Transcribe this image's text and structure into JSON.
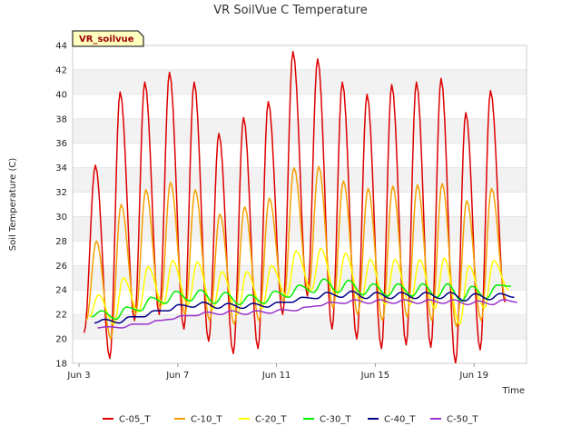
{
  "chart_data": {
    "type": "line",
    "title": "VR SoilVue C Temperature",
    "xlabel": "Time",
    "ylabel": "Soil Temperature (C)",
    "station_label": "VR_soilvue",
    "ylim": [
      18,
      44
    ],
    "yticks": [
      18,
      20,
      22,
      24,
      26,
      28,
      30,
      32,
      34,
      36,
      38,
      40,
      42,
      44
    ],
    "xlim": [
      "2024-06-03",
      "2024-06-21"
    ],
    "xticks": [
      {
        "date": "2024-06-03",
        "label": "Jun 3"
      },
      {
        "date": "2024-06-07",
        "label": "Jun 7"
      },
      {
        "date": "2024-06-11",
        "label": "Jun 11"
      },
      {
        "date": "2024-06-15",
        "label": "Jun 15"
      },
      {
        "date": "2024-06-19",
        "label": "Jun 19"
      }
    ],
    "grid": true,
    "legend_position": "bottom",
    "series": [
      {
        "name": "C-05_T",
        "color": "#dd0000",
        "daily": [
          {
            "peak_date": "2024-06-03 16:00",
            "max": 34.2,
            "min_date": "2024-06-03 05:00",
            "min": 20.5
          },
          {
            "peak_date": "2024-06-04 16:00",
            "max": 40.2,
            "min_date": "2024-06-04 06:00",
            "min": 18.4
          },
          {
            "peak_date": "2024-06-05 16:00",
            "max": 41.0,
            "min_date": "2024-06-05 06:00",
            "min": 21.5
          },
          {
            "peak_date": "2024-06-06 16:00",
            "max": 41.8,
            "min_date": "2024-06-06 06:00",
            "min": 22.0
          },
          {
            "peak_date": "2024-06-07 16:00",
            "max": 41.0,
            "min_date": "2024-06-07 06:00",
            "min": 20.8
          },
          {
            "peak_date": "2024-06-08 16:00",
            "max": 36.8,
            "min_date": "2024-06-08 06:00",
            "min": 19.8
          },
          {
            "peak_date": "2024-06-09 16:00",
            "max": 38.1,
            "min_date": "2024-06-09 06:00",
            "min": 18.8
          },
          {
            "peak_date": "2024-06-10 16:00",
            "max": 39.4,
            "min_date": "2024-06-10 06:00",
            "min": 19.2
          },
          {
            "peak_date": "2024-06-11 16:00",
            "max": 43.5,
            "min_date": "2024-06-11 06:00",
            "min": 22.0
          },
          {
            "peak_date": "2024-06-12 16:00",
            "max": 42.9,
            "min_date": "2024-06-12 06:00",
            "min": 23.5
          },
          {
            "peak_date": "2024-06-13 16:00",
            "max": 41.0,
            "min_date": "2024-06-13 06:00",
            "min": 20.8
          },
          {
            "peak_date": "2024-06-14 16:00",
            "max": 40.0,
            "min_date": "2024-06-14 06:00",
            "min": 20.0
          },
          {
            "peak_date": "2024-06-15 16:00",
            "max": 40.8,
            "min_date": "2024-06-15 06:00",
            "min": 19.2
          },
          {
            "peak_date": "2024-06-16 16:00",
            "max": 41.0,
            "min_date": "2024-06-16 06:00",
            "min": 19.5
          },
          {
            "peak_date": "2024-06-17 16:00",
            "max": 41.3,
            "min_date": "2024-06-17 06:00",
            "min": 19.3
          },
          {
            "peak_date": "2024-06-18 16:00",
            "max": 38.5,
            "min_date": "2024-06-18 06:00",
            "min": 18.0
          },
          {
            "peak_date": "2024-06-19 16:00",
            "max": 40.3,
            "min_date": "2024-06-19 06:00",
            "min": 19.1
          },
          {
            "peak_date": "2024-06-20 16:00",
            "max": null,
            "min_date": "2024-06-20 06:00",
            "min": 23.0
          }
        ]
      },
      {
        "name": "C-10_T",
        "color": "#f5a000",
        "daily": [
          {
            "peak_date": "2024-06-03 17:00",
            "max": 28.0,
            "min_date": "2024-06-03 07:00",
            "min": 21.5
          },
          {
            "peak_date": "2024-06-04 17:00",
            "max": 31.0,
            "min_date": "2024-06-04 07:00",
            "min": 20.0
          },
          {
            "peak_date": "2024-06-05 17:00",
            "max": 32.2,
            "min_date": "2024-06-05 07:00",
            "min": 22.0
          },
          {
            "peak_date": "2024-06-06 17:00",
            "max": 32.8,
            "min_date": "2024-06-06 07:00",
            "min": 22.5
          },
          {
            "peak_date": "2024-06-07 17:00",
            "max": 32.2,
            "min_date": "2024-06-07 07:00",
            "min": 22.0
          },
          {
            "peak_date": "2024-06-08 17:00",
            "max": 30.2,
            "min_date": "2024-06-08 07:00",
            "min": 21.5
          },
          {
            "peak_date": "2024-06-09 17:00",
            "max": 30.8,
            "min_date": "2024-06-09 07:00",
            "min": 21.2
          },
          {
            "peak_date": "2024-06-10 17:00",
            "max": 31.5,
            "min_date": "2024-06-10 07:00",
            "min": 21.5
          },
          {
            "peak_date": "2024-06-11 17:00",
            "max": 34.0,
            "min_date": "2024-06-11 07:00",
            "min": 23.0
          },
          {
            "peak_date": "2024-06-12 17:00",
            "max": 34.1,
            "min_date": "2024-06-12 07:00",
            "min": 23.8
          },
          {
            "peak_date": "2024-06-13 17:00",
            "max": 32.9,
            "min_date": "2024-06-13 07:00",
            "min": 22.5
          },
          {
            "peak_date": "2024-06-14 17:00",
            "max": 32.3,
            "min_date": "2024-06-14 07:00",
            "min": 22.0
          },
          {
            "peak_date": "2024-06-15 17:00",
            "max": 32.5,
            "min_date": "2024-06-15 07:00",
            "min": 21.5
          },
          {
            "peak_date": "2024-06-16 17:00",
            "max": 32.6,
            "min_date": "2024-06-16 07:00",
            "min": 21.8
          },
          {
            "peak_date": "2024-06-17 17:00",
            "max": 32.7,
            "min_date": "2024-06-17 07:00",
            "min": 21.5
          },
          {
            "peak_date": "2024-06-18 17:00",
            "max": 31.3,
            "min_date": "2024-06-18 07:00",
            "min": 21.0
          },
          {
            "peak_date": "2024-06-19 17:00",
            "max": 32.3,
            "min_date": "2024-06-19 07:00",
            "min": 21.5
          },
          {
            "peak_date": "2024-06-20 17:00",
            "max": null,
            "min_date": "2024-06-20 07:00",
            "min": 23.2
          }
        ]
      },
      {
        "name": "C-20_T",
        "color": "#ffff00",
        "daily": [
          {
            "peak_date": "2024-06-03 19:00",
            "max": 23.6,
            "min_date": "2024-06-03 10:00",
            "min": 21.8
          },
          {
            "peak_date": "2024-06-04 19:00",
            "max": 25.0,
            "min_date": "2024-06-04 10:00",
            "min": 21.2
          },
          {
            "peak_date": "2024-06-05 19:00",
            "max": 25.9,
            "min_date": "2024-06-05 10:00",
            "min": 22.2
          },
          {
            "peak_date": "2024-06-06 19:00",
            "max": 26.4,
            "min_date": "2024-06-06 10:00",
            "min": 22.8
          },
          {
            "peak_date": "2024-06-07 19:00",
            "max": 26.3,
            "min_date": "2024-06-07 10:00",
            "min": 22.8
          },
          {
            "peak_date": "2024-06-08 19:00",
            "max": 25.5,
            "min_date": "2024-06-08 10:00",
            "min": 22.4
          },
          {
            "peak_date": "2024-06-09 19:00",
            "max": 25.5,
            "min_date": "2024-06-09 10:00",
            "min": 22.0
          },
          {
            "peak_date": "2024-06-10 19:00",
            "max": 26.0,
            "min_date": "2024-06-10 10:00",
            "min": 22.5
          },
          {
            "peak_date": "2024-06-11 19:00",
            "max": 27.2,
            "min_date": "2024-06-11 10:00",
            "min": 23.5
          },
          {
            "peak_date": "2024-06-12 19:00",
            "max": 27.4,
            "min_date": "2024-06-12 10:00",
            "min": 24.0
          },
          {
            "peak_date": "2024-06-13 19:00",
            "max": 27.0,
            "min_date": "2024-06-13 10:00",
            "min": 23.5
          },
          {
            "peak_date": "2024-06-14 19:00",
            "max": 26.5,
            "min_date": "2024-06-14 10:00",
            "min": 23.0
          },
          {
            "peak_date": "2024-06-15 19:00",
            "max": 26.5,
            "min_date": "2024-06-15 10:00",
            "min": 22.8
          },
          {
            "peak_date": "2024-06-16 19:00",
            "max": 26.5,
            "min_date": "2024-06-16 10:00",
            "min": 22.8
          },
          {
            "peak_date": "2024-06-17 19:00",
            "max": 26.6,
            "min_date": "2024-06-17 10:00",
            "min": 22.5
          },
          {
            "peak_date": "2024-06-18 19:00",
            "max": 26.0,
            "min_date": "2024-06-18 10:00",
            "min": 21.2
          },
          {
            "peak_date": "2024-06-19 19:00",
            "max": 26.4,
            "min_date": "2024-06-19 10:00",
            "min": 22.5
          },
          {
            "peak_date": "2024-06-20 19:00",
            "max": null,
            "min_date": "2024-06-20 10:00",
            "min": 24.0
          }
        ]
      },
      {
        "name": "C-30_T",
        "color": "#00ee00",
        "daily": [
          {
            "peak_date": "2024-06-03 22:00",
            "max": 22.3,
            "min_date": "2024-06-03 12:00",
            "min": 21.8
          },
          {
            "peak_date": "2024-06-04 22:00",
            "max": 22.6,
            "min_date": "2024-06-04 12:00",
            "min": 21.6
          },
          {
            "peak_date": "2024-06-05 22:00",
            "max": 23.4,
            "min_date": "2024-06-05 12:00",
            "min": 22.3
          },
          {
            "peak_date": "2024-06-06 22:00",
            "max": 23.9,
            "min_date": "2024-06-06 12:00",
            "min": 22.9
          },
          {
            "peak_date": "2024-06-07 22:00",
            "max": 24.0,
            "min_date": "2024-06-07 12:00",
            "min": 23.1
          },
          {
            "peak_date": "2024-06-08 22:00",
            "max": 23.8,
            "min_date": "2024-06-08 12:00",
            "min": 22.9
          },
          {
            "peak_date": "2024-06-09 22:00",
            "max": 23.6,
            "min_date": "2024-06-09 12:00",
            "min": 22.8
          },
          {
            "peak_date": "2024-06-10 22:00",
            "max": 23.9,
            "min_date": "2024-06-10 12:00",
            "min": 22.9
          },
          {
            "peak_date": "2024-06-11 22:00",
            "max": 24.4,
            "min_date": "2024-06-11 12:00",
            "min": 23.4
          },
          {
            "peak_date": "2024-06-12 22:00",
            "max": 24.9,
            "min_date": "2024-06-12 12:00",
            "min": 23.8
          },
          {
            "peak_date": "2024-06-13 22:00",
            "max": 24.8,
            "min_date": "2024-06-13 12:00",
            "min": 23.8
          },
          {
            "peak_date": "2024-06-14 22:00",
            "max": 24.5,
            "min_date": "2024-06-14 12:00",
            "min": 23.6
          },
          {
            "peak_date": "2024-06-15 22:00",
            "max": 24.5,
            "min_date": "2024-06-15 12:00",
            "min": 23.5
          },
          {
            "peak_date": "2024-06-16 22:00",
            "max": 24.5,
            "min_date": "2024-06-16 12:00",
            "min": 23.5
          },
          {
            "peak_date": "2024-06-17 22:00",
            "max": 24.5,
            "min_date": "2024-06-17 12:00",
            "min": 23.4
          },
          {
            "peak_date": "2024-06-18 22:00",
            "max": 24.3,
            "min_date": "2024-06-18 12:00",
            "min": 23.1
          },
          {
            "peak_date": "2024-06-19 22:00",
            "max": 24.4,
            "min_date": "2024-06-19 12:00",
            "min": 23.3
          },
          {
            "peak_date": "2024-06-20 22:00",
            "max": null,
            "min_date": "2024-06-20 12:00",
            "min": 24.3
          }
        ]
      },
      {
        "name": "C-40_T",
        "color": "#00008b",
        "daily": [
          {
            "peak_date": "2024-06-04 01:00",
            "max": 21.6,
            "min_date": "2024-06-03 15:00",
            "min": 21.3
          },
          {
            "peak_date": "2024-06-05 01:00",
            "max": 21.8,
            "min_date": "2024-06-04 15:00",
            "min": 21.3
          },
          {
            "peak_date": "2024-06-06 01:00",
            "max": 22.3,
            "min_date": "2024-06-05 15:00",
            "min": 21.8
          },
          {
            "peak_date": "2024-06-07 01:00",
            "max": 22.8,
            "min_date": "2024-06-06 15:00",
            "min": 22.3
          },
          {
            "peak_date": "2024-06-08 01:00",
            "max": 23.0,
            "min_date": "2024-06-07 15:00",
            "min": 22.6
          },
          {
            "peak_date": "2024-06-09 01:00",
            "max": 22.9,
            "min_date": "2024-06-08 15:00",
            "min": 22.5
          },
          {
            "peak_date": "2024-06-10 01:00",
            "max": 22.9,
            "min_date": "2024-06-09 15:00",
            "min": 22.5
          },
          {
            "peak_date": "2024-06-11 01:00",
            "max": 23.0,
            "min_date": "2024-06-10 15:00",
            "min": 22.6
          },
          {
            "peak_date": "2024-06-12 01:00",
            "max": 23.4,
            "min_date": "2024-06-11 15:00",
            "min": 23.0
          },
          {
            "peak_date": "2024-06-13 01:00",
            "max": 23.8,
            "min_date": "2024-06-12 15:00",
            "min": 23.3
          },
          {
            "peak_date": "2024-06-14 01:00",
            "max": 23.9,
            "min_date": "2024-06-13 15:00",
            "min": 23.4
          },
          {
            "peak_date": "2024-06-15 01:00",
            "max": 23.8,
            "min_date": "2024-06-14 15:00",
            "min": 23.3
          },
          {
            "peak_date": "2024-06-16 01:00",
            "max": 23.8,
            "min_date": "2024-06-15 15:00",
            "min": 23.3
          },
          {
            "peak_date": "2024-06-17 01:00",
            "max": 23.8,
            "min_date": "2024-06-16 15:00",
            "min": 23.3
          },
          {
            "peak_date": "2024-06-18 01:00",
            "max": 23.8,
            "min_date": "2024-06-17 15:00",
            "min": 23.3
          },
          {
            "peak_date": "2024-06-19 01:00",
            "max": 23.7,
            "min_date": "2024-06-18 15:00",
            "min": 23.1
          },
          {
            "peak_date": "2024-06-20 01:00",
            "max": 23.7,
            "min_date": "2024-06-19 15:00",
            "min": 23.2
          },
          {
            "peak_date": "2024-06-21 01:00",
            "max": null,
            "min_date": "2024-06-20 15:00",
            "min": 23.4
          }
        ]
      },
      {
        "name": "C-50_T",
        "color": "#9933cc",
        "daily": [
          {
            "peak_date": "2024-06-04 04:00",
            "max": 21.0,
            "min_date": "2024-06-03 18:00",
            "min": 20.9
          },
          {
            "peak_date": "2024-06-05 04:00",
            "max": 21.2,
            "min_date": "2024-06-04 18:00",
            "min": 20.9
          },
          {
            "peak_date": "2024-06-06 04:00",
            "max": 21.5,
            "min_date": "2024-06-05 18:00",
            "min": 21.2
          },
          {
            "peak_date": "2024-06-07 04:00",
            "max": 21.9,
            "min_date": "2024-06-06 18:00",
            "min": 21.6
          },
          {
            "peak_date": "2024-06-08 04:00",
            "max": 22.2,
            "min_date": "2024-06-07 18:00",
            "min": 21.9
          },
          {
            "peak_date": "2024-06-09 04:00",
            "max": 22.3,
            "min_date": "2024-06-08 18:00",
            "min": 22.0
          },
          {
            "peak_date": "2024-06-10 04:00",
            "max": 22.3,
            "min_date": "2024-06-09 18:00",
            "min": 22.0
          },
          {
            "peak_date": "2024-06-11 04:00",
            "max": 22.4,
            "min_date": "2024-06-10 18:00",
            "min": 22.1
          },
          {
            "peak_date": "2024-06-12 04:00",
            "max": 22.6,
            "min_date": "2024-06-11 18:00",
            "min": 22.3
          },
          {
            "peak_date": "2024-06-13 04:00",
            "max": 23.0,
            "min_date": "2024-06-12 18:00",
            "min": 22.7
          },
          {
            "peak_date": "2024-06-14 04:00",
            "max": 23.2,
            "min_date": "2024-06-13 18:00",
            "min": 22.9
          },
          {
            "peak_date": "2024-06-15 04:00",
            "max": 23.2,
            "min_date": "2024-06-14 18:00",
            "min": 22.9
          },
          {
            "peak_date": "2024-06-16 04:00",
            "max": 23.2,
            "min_date": "2024-06-15 18:00",
            "min": 22.9
          },
          {
            "peak_date": "2024-06-17 04:00",
            "max": 23.2,
            "min_date": "2024-06-16 18:00",
            "min": 22.9
          },
          {
            "peak_date": "2024-06-18 04:00",
            "max": 23.2,
            "min_date": "2024-06-17 18:00",
            "min": 22.9
          },
          {
            "peak_date": "2024-06-19 04:00",
            "max": 23.1,
            "min_date": "2024-06-18 18:00",
            "min": 22.8
          },
          {
            "peak_date": "2024-06-20 04:00",
            "max": 23.2,
            "min_date": "2024-06-19 18:00",
            "min": 22.8
          },
          {
            "peak_date": "2024-06-21 04:00",
            "max": null,
            "min_date": "2024-06-20 18:00",
            "min": 23.0
          }
        ]
      }
    ]
  }
}
